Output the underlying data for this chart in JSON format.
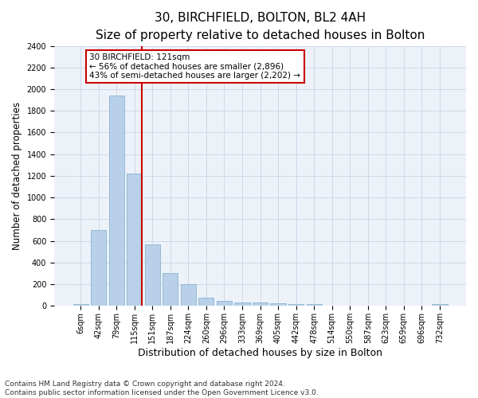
{
  "title": "30, BIRCHFIELD, BOLTON, BL2 4AH",
  "subtitle": "Size of property relative to detached houses in Bolton",
  "xlabel": "Distribution of detached houses by size in Bolton",
  "ylabel": "Number of detached properties",
  "bar_labels": [
    "6sqm",
    "42sqm",
    "79sqm",
    "115sqm",
    "151sqm",
    "187sqm",
    "224sqm",
    "260sqm",
    "296sqm",
    "333sqm",
    "369sqm",
    "405sqm",
    "442sqm",
    "478sqm",
    "514sqm",
    "550sqm",
    "587sqm",
    "623sqm",
    "659sqm",
    "696sqm",
    "732sqm"
  ],
  "bar_values": [
    15,
    700,
    1940,
    1220,
    570,
    305,
    200,
    80,
    45,
    35,
    35,
    25,
    18,
    18,
    0,
    0,
    0,
    0,
    0,
    0,
    15
  ],
  "bar_color": "#b8d0e8",
  "bar_edge_color": "#8ab4d4",
  "red_line_index": 3,
  "red_line_color": "#cc0000",
  "annotation_text": "30 BIRCHFIELD: 121sqm\n← 56% of detached houses are smaller (2,896)\n43% of semi-detached houses are larger (2,202) →",
  "annotation_box_color": "#ffffff",
  "annotation_box_edge": "#cc0000",
  "ylim": [
    0,
    2400
  ],
  "yticks": [
    0,
    200,
    400,
    600,
    800,
    1000,
    1200,
    1400,
    1600,
    1800,
    2000,
    2200,
    2400
  ],
  "grid_color": "#d0d8e8",
  "background_color": "#edf2f9",
  "footer_text": "Contains HM Land Registry data © Crown copyright and database right 2024.\nContains public sector information licensed under the Open Government Licence v3.0.",
  "title_fontsize": 11,
  "subtitle_fontsize": 9.5,
  "xlabel_fontsize": 9,
  "ylabel_fontsize": 8.5,
  "tick_fontsize": 7,
  "annotation_fontsize": 7.5,
  "footer_fontsize": 6.5
}
